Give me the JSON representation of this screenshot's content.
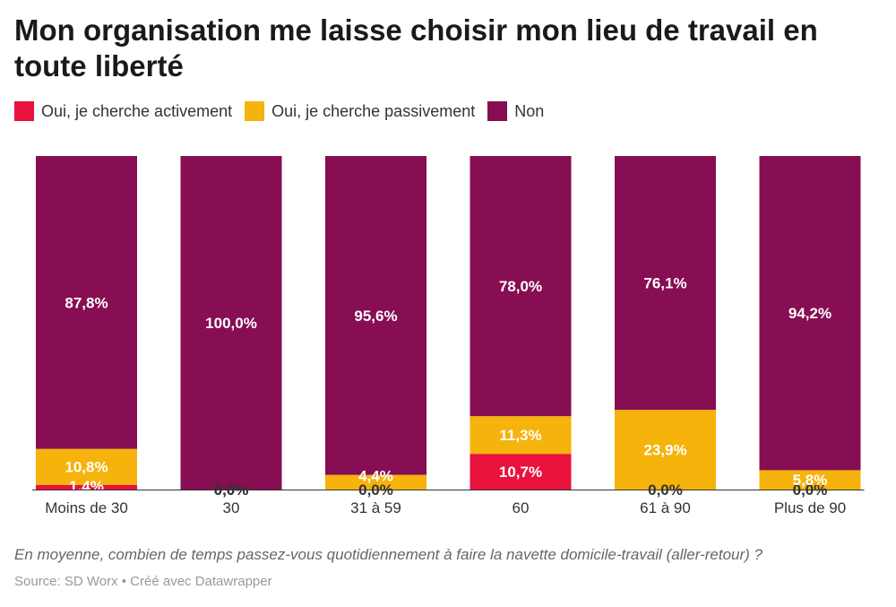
{
  "chart_data": {
    "type": "bar",
    "stacked": true,
    "title": "Mon organisation me laisse choisir mon lieu de travail en toute liberté",
    "categories": [
      "Moins de 30",
      "30",
      "31 à 59",
      "60",
      "61 à 90",
      "Plus de 90"
    ],
    "series": [
      {
        "name": "Oui, je cherche activement",
        "color": "#e8123c",
        "values": [
          1.4,
          0.0,
          0.0,
          10.7,
          0.0,
          0.0
        ],
        "labels": [
          "1,4%",
          "0,0%",
          "0,0%",
          "10,7%",
          "0,0%",
          "0,0%"
        ]
      },
      {
        "name": "Oui, je cherche passivement",
        "color": "#f5b30c",
        "values": [
          10.8,
          0.0,
          4.4,
          11.3,
          23.9,
          5.8
        ],
        "labels": [
          "10,8%",
          "0,0%",
          "4,4%",
          "11,3%",
          "23,9%",
          "5,8%"
        ]
      },
      {
        "name": "Non",
        "color": "#870e52",
        "values": [
          87.8,
          100.0,
          95.6,
          78.0,
          76.1,
          94.2
        ],
        "labels": [
          "87,8%",
          "100,0%",
          "95,6%",
          "78,0%",
          "76,1%",
          "94,2%"
        ]
      }
    ],
    "ylim": [
      0,
      100
    ],
    "xlabel": "En moyenne, combien de temps passez-vous quotidiennement à faire la navette domicile-travail (aller-retour) ?",
    "ylabel": ""
  },
  "legend": [
    {
      "label": "Oui, je cherche activement",
      "color": "#e8123c"
    },
    {
      "label": "Oui, je cherche passivement",
      "color": "#f5b30c"
    },
    {
      "label": "Non",
      "color": "#870e52"
    }
  ],
  "footnote": "En moyenne, combien de temps passez-vous quotidiennement à faire la navette domicile-travail (aller-retour) ?",
  "source": "Source: SD Worx • Créé avec Datawrapper"
}
